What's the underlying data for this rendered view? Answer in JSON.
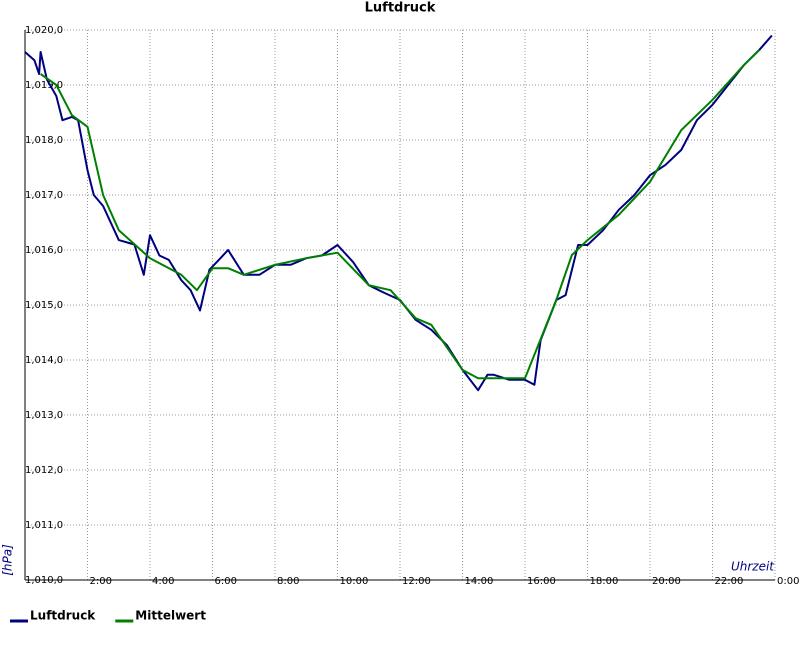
{
  "chart_data": {
    "type": "line",
    "title": "Luftdruck",
    "xlabel": "Uhrzeit",
    "ylabel": "[hPa]",
    "xlim": [
      0,
      24
    ],
    "ylim": [
      1010,
      1020
    ],
    "xticks": [
      {
        "value": 2,
        "label": "2:00"
      },
      {
        "value": 4,
        "label": "4:00"
      },
      {
        "value": 6,
        "label": "6:00"
      },
      {
        "value": 8,
        "label": "8:00"
      },
      {
        "value": 10,
        "label": "10:00"
      },
      {
        "value": 12,
        "label": "12:00"
      },
      {
        "value": 14,
        "label": "14:00"
      },
      {
        "value": 16,
        "label": "16:00"
      },
      {
        "value": 18,
        "label": "18:00"
      },
      {
        "value": 20,
        "label": "20:00"
      },
      {
        "value": 22,
        "label": "22:00"
      },
      {
        "value": 24,
        "label": "0:00"
      }
    ],
    "yticks": [
      {
        "value": 1010,
        "label": "1,010,0"
      },
      {
        "value": 1011,
        "label": "1,011,0"
      },
      {
        "value": 1012,
        "label": "1,012,0"
      },
      {
        "value": 1013,
        "label": "1,013,0"
      },
      {
        "value": 1014,
        "label": "1,014,0"
      },
      {
        "value": 1015,
        "label": "1,015,0"
      },
      {
        "value": 1016,
        "label": "1,016,0"
      },
      {
        "value": 1017,
        "label": "1,017,0"
      },
      {
        "value": 1018,
        "label": "1,018,0"
      },
      {
        "value": 1019,
        "label": "1,019,0"
      },
      {
        "value": 1020,
        "label": "1,020,0"
      }
    ],
    "grid": true,
    "legend": "bottom-left",
    "series": [
      {
        "name": "Luftdruck",
        "color": "#000080",
        "x": [
          0,
          0.3,
          0.45,
          0.5,
          0.7,
          1.0,
          1.2,
          1.5,
          1.7,
          2.0,
          2.2,
          2.5,
          3.0,
          3.5,
          3.8,
          4.0,
          4.3,
          4.6,
          5.0,
          5.3,
          5.6,
          5.9,
          6.2,
          6.5,
          7.0,
          7.5,
          8.0,
          8.5,
          9.0,
          9.5,
          10.0,
          10.5,
          11.0,
          11.5,
          12.0,
          12.5,
          13.0,
          13.5,
          14.0,
          14.5,
          14.8,
          15.0,
          15.5,
          16.0,
          16.3,
          16.5,
          17.0,
          17.3,
          17.7,
          18.0,
          18.5,
          19.0,
          19.5,
          20.0,
          20.5,
          21.0,
          21.5,
          22.0,
          22.5,
          23.0,
          23.5,
          23.9
        ],
        "values": [
          1019.6,
          1019.45,
          1019.2,
          1019.6,
          1019.1,
          1018.8,
          1018.36,
          1018.42,
          1018.36,
          1017.45,
          1017.0,
          1016.8,
          1016.18,
          1016.1,
          1015.55,
          1016.27,
          1015.9,
          1015.82,
          1015.45,
          1015.27,
          1014.9,
          1015.64,
          1015.82,
          1016.0,
          1015.55,
          1015.55,
          1015.73,
          1015.73,
          1015.85,
          1015.9,
          1016.09,
          1015.78,
          1015.36,
          1015.22,
          1015.09,
          1014.73,
          1014.55,
          1014.27,
          1013.82,
          1013.45,
          1013.73,
          1013.73,
          1013.64,
          1013.64,
          1013.55,
          1014.36,
          1015.09,
          1015.18,
          1016.09,
          1016.09,
          1016.36,
          1016.73,
          1017.0,
          1017.36,
          1017.55,
          1017.82,
          1018.36,
          1018.64,
          1019.0,
          1019.36,
          1019.64,
          1019.9
        ]
      },
      {
        "name": "Mittelwert",
        "color": "#008000",
        "x": [
          0.5,
          1.0,
          1.5,
          2.0,
          2.5,
          3.0,
          4.0,
          5.0,
          5.5,
          6.0,
          6.5,
          7.0,
          8.0,
          9.0,
          10.0,
          11.0,
          11.7,
          12.5,
          13.0,
          14.0,
          14.5,
          16.0,
          17.0,
          17.5,
          18.0,
          19.0,
          20.0,
          21.0,
          22.0,
          23.0,
          23.5
        ],
        "values": [
          1019.2,
          1019.0,
          1018.45,
          1018.24,
          1017.0,
          1016.36,
          1015.85,
          1015.55,
          1015.27,
          1015.67,
          1015.67,
          1015.55,
          1015.73,
          1015.85,
          1015.95,
          1015.36,
          1015.27,
          1014.76,
          1014.64,
          1013.82,
          1013.67,
          1013.67,
          1015.09,
          1015.91,
          1016.18,
          1016.64,
          1017.24,
          1018.18,
          1018.73,
          1019.36,
          1019.64
        ]
      }
    ]
  }
}
